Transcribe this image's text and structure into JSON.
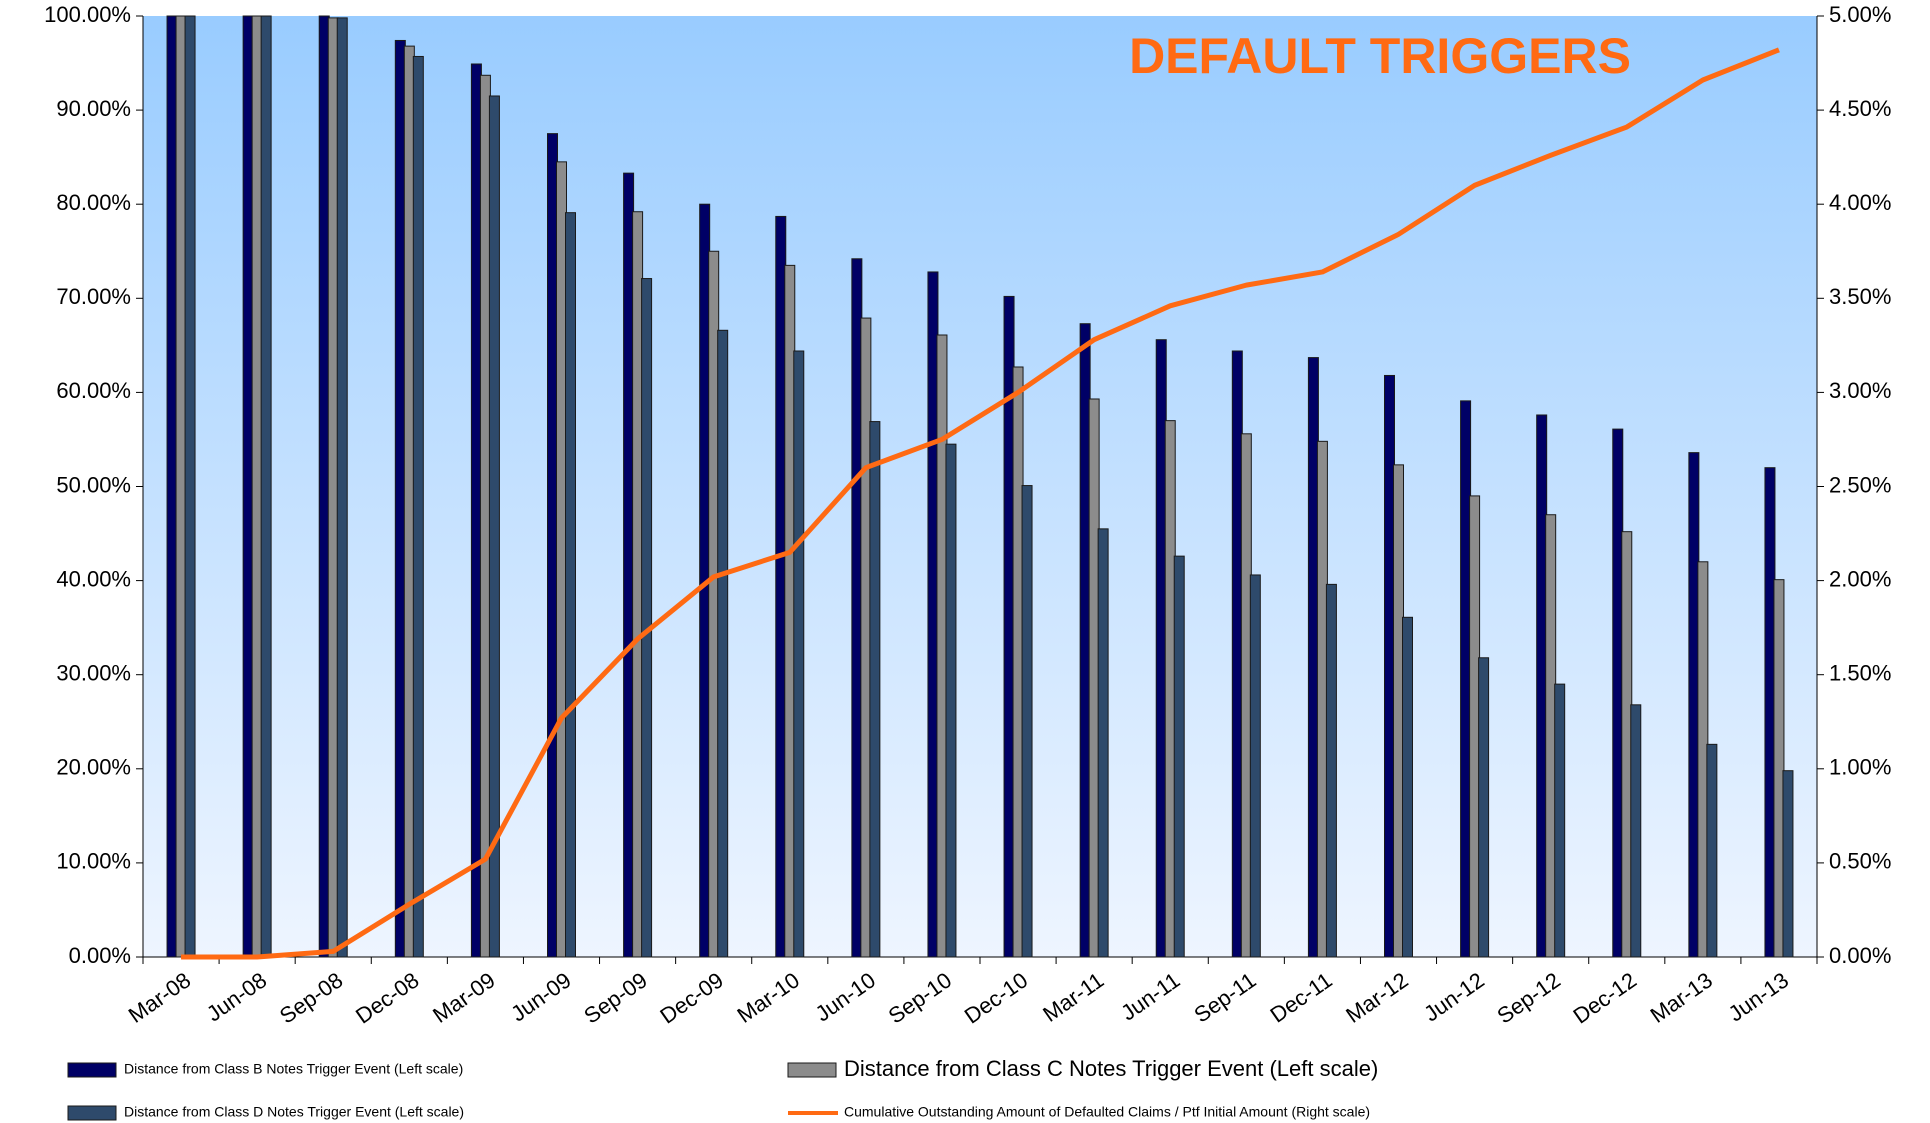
{
  "chart_data": {
    "type": "bar-line",
    "title": "DEFAULT TRIGGERS",
    "categories": [
      "Mar-08",
      "Jun-08",
      "Sep-08",
      "Dec-08",
      "Mar-09",
      "Jun-09",
      "Sep-09",
      "Dec-09",
      "Mar-10",
      "Jun-10",
      "Sep-10",
      "Dec-10",
      "Mar-11",
      "Jun-11",
      "Sep-11",
      "Dec-11",
      "Mar-12",
      "Jun-12",
      "Sep-12",
      "Dec-12",
      "Mar-13",
      "Jun-13"
    ],
    "series": [
      {
        "name": "Distance from Class B Notes Trigger Event (Left scale)",
        "type": "bar",
        "color": "#000066",
        "values": [
          100,
          100,
          100,
          97.4,
          94.9,
          87.5,
          83.3,
          80.0,
          78.7,
          74.2,
          72.8,
          70.2,
          67.3,
          65.6,
          64.4,
          63.7,
          61.8,
          59.1,
          57.6,
          56.1,
          53.6,
          52.0
        ]
      },
      {
        "name": "Distance from Class C Notes Trigger Event (Left scale)",
        "type": "bar",
        "color": "#8c8c8c",
        "values": [
          100,
          100,
          99.8,
          96.8,
          93.7,
          84.5,
          79.2,
          75.0,
          73.5,
          67.9,
          66.1,
          62.7,
          59.3,
          57.0,
          55.6,
          54.8,
          52.3,
          49.0,
          47.0,
          45.2,
          42.0,
          40.1
        ]
      },
      {
        "name": "Distance from Class D Notes Trigger Event (Left scale)",
        "type": "bar",
        "color": "#2e4a6b",
        "values": [
          100,
          100,
          99.8,
          95.7,
          91.5,
          79.1,
          72.1,
          66.6,
          64.4,
          56.9,
          54.5,
          50.1,
          45.5,
          42.6,
          40.6,
          39.6,
          36.1,
          31.8,
          29.0,
          26.8,
          22.6,
          19.8
        ]
      },
      {
        "name": "Cumulative Outstanding Amount of Defaulted Claims / Ptf Initial Amount (Right scale)",
        "type": "line",
        "axis": "y2",
        "color": "#ff6a13",
        "values": [
          0.0,
          0.0,
          0.03,
          0.28,
          0.52,
          1.27,
          1.69,
          2.02,
          2.15,
          2.6,
          2.75,
          3.0,
          3.28,
          3.46,
          3.57,
          3.64,
          3.84,
          4.1,
          4.26,
          4.41,
          4.66,
          4.82
        ]
      }
    ],
    "ylim": [
      0,
      100
    ],
    "yticks": [
      {
        "value": 0,
        "label": "0.00%"
      },
      {
        "value": 10,
        "label": "10.00%"
      },
      {
        "value": 20,
        "label": "20.00%"
      },
      {
        "value": 30,
        "label": "30.00%"
      },
      {
        "value": 40,
        "label": "40.00%"
      },
      {
        "value": 50,
        "label": "50.00%"
      },
      {
        "value": 60,
        "label": "60.00%"
      },
      {
        "value": 70,
        "label": "70.00%"
      },
      {
        "value": 80,
        "label": "80.00%"
      },
      {
        "value": 90,
        "label": "90.00%"
      },
      {
        "value": 100,
        "label": "100.00%"
      }
    ],
    "y2lim": [
      0,
      5
    ],
    "y2ticks": [
      {
        "value": 0,
        "label": "0.00%"
      },
      {
        "value": 0.5,
        "label": "0.50%"
      },
      {
        "value": 1,
        "label": "1.00%"
      },
      {
        "value": 1.5,
        "label": "1.50%"
      },
      {
        "value": 2,
        "label": "2.00%"
      },
      {
        "value": 2.5,
        "label": "2.50%"
      },
      {
        "value": 3,
        "label": "3.00%"
      },
      {
        "value": 3.5,
        "label": "3.50%"
      },
      {
        "value": 4,
        "label": "4.00%"
      },
      {
        "value": 4.5,
        "label": "4.50%"
      },
      {
        "value": 5,
        "label": "5.00%"
      }
    ],
    "grid": false,
    "legend": "bottom"
  }
}
